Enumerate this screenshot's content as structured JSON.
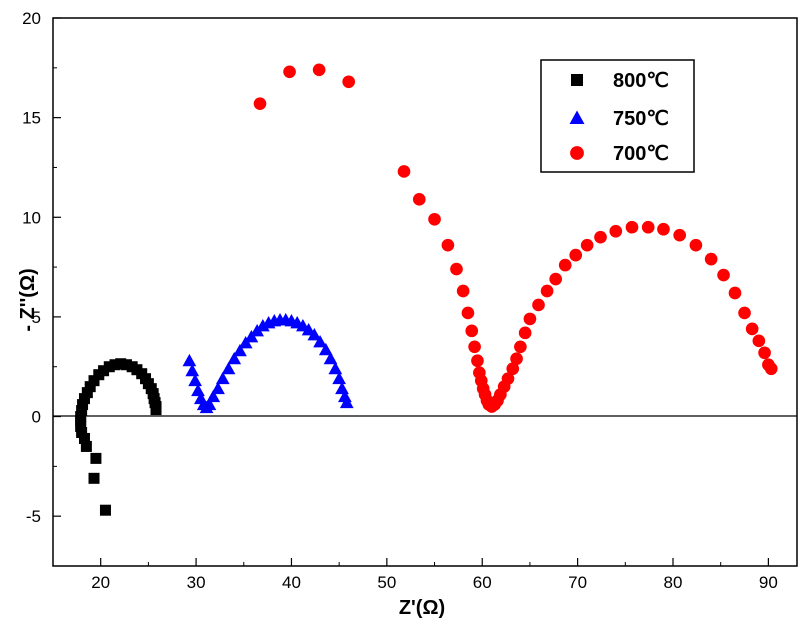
{
  "chart_data": {
    "type": "scatter",
    "xlabel": "Z'(Ω)",
    "ylabel": "- Z''(Ω)",
    "xlim": [
      15,
      93
    ],
    "ylim": [
      -7.5,
      20
    ],
    "xticks": [
      20,
      30,
      40,
      50,
      60,
      70,
      80,
      90
    ],
    "yticks": [
      -5,
      0,
      5,
      10,
      15,
      20
    ],
    "x_tick_labels": [
      "20",
      "30",
      "40",
      "50",
      "60",
      "70",
      "80",
      "90"
    ],
    "y_tick_labels": [
      "-5",
      "0",
      "5",
      "10",
      "15",
      "20"
    ],
    "zero_line": true,
    "grid": false,
    "legend_position": "top-right",
    "series": [
      {
        "name": "800℃",
        "marker": "square",
        "color": "#000000",
        "points": [
          [
            20.5,
            -4.7
          ],
          [
            19.3,
            -3.1
          ],
          [
            19.5,
            -2.1
          ],
          [
            18.5,
            -1.5
          ],
          [
            18.3,
            -1.1
          ],
          [
            18.0,
            -0.8
          ],
          [
            17.9,
            -0.5
          ],
          [
            17.9,
            -0.2
          ],
          [
            17.9,
            0.0
          ],
          [
            18.0,
            0.3
          ],
          [
            18.1,
            0.6
          ],
          [
            18.3,
            0.9
          ],
          [
            18.6,
            1.2
          ],
          [
            18.9,
            1.5
          ],
          [
            19.3,
            1.8
          ],
          [
            19.8,
            2.1
          ],
          [
            20.3,
            2.3
          ],
          [
            20.9,
            2.5
          ],
          [
            21.5,
            2.6
          ],
          [
            22.1,
            2.65
          ],
          [
            22.7,
            2.6
          ],
          [
            23.3,
            2.5
          ],
          [
            23.8,
            2.35
          ],
          [
            24.3,
            2.15
          ],
          [
            24.7,
            1.9
          ],
          [
            25.0,
            1.65
          ],
          [
            25.3,
            1.4
          ],
          [
            25.5,
            1.15
          ],
          [
            25.6,
            0.9
          ],
          [
            25.7,
            0.7
          ],
          [
            25.8,
            0.5
          ],
          [
            25.8,
            0.35
          ]
        ]
      },
      {
        "name": "750℃",
        "marker": "triangle",
        "color": "#0000ff",
        "points": [
          [
            29.3,
            2.8
          ],
          [
            29.6,
            2.3
          ],
          [
            29.9,
            1.8
          ],
          [
            30.2,
            1.3
          ],
          [
            30.5,
            0.9
          ],
          [
            30.8,
            0.6
          ],
          [
            31.1,
            0.45
          ],
          [
            31.4,
            0.6
          ],
          [
            31.8,
            1.0
          ],
          [
            32.3,
            1.4
          ],
          [
            32.8,
            1.9
          ],
          [
            33.4,
            2.4
          ],
          [
            34.0,
            2.9
          ],
          [
            34.6,
            3.3
          ],
          [
            35.2,
            3.7
          ],
          [
            35.8,
            4.0
          ],
          [
            36.4,
            4.3
          ],
          [
            37.0,
            4.55
          ],
          [
            37.6,
            4.7
          ],
          [
            38.2,
            4.8
          ],
          [
            38.8,
            4.85
          ],
          [
            39.4,
            4.85
          ],
          [
            40.0,
            4.8
          ],
          [
            40.6,
            4.7
          ],
          [
            41.2,
            4.55
          ],
          [
            41.8,
            4.35
          ],
          [
            42.4,
            4.1
          ],
          [
            43.0,
            3.75
          ],
          [
            43.6,
            3.35
          ],
          [
            44.1,
            2.9
          ],
          [
            44.6,
            2.4
          ],
          [
            45.0,
            1.9
          ],
          [
            45.3,
            1.4
          ],
          [
            45.6,
            1.0
          ],
          [
            45.8,
            0.7
          ]
        ]
      },
      {
        "name": "700℃",
        "marker": "circle",
        "color": "#ff0000",
        "points": [
          [
            36.7,
            15.7
          ],
          [
            39.8,
            17.3
          ],
          [
            42.9,
            17.4
          ],
          [
            46.0,
            16.8
          ],
          [
            51.8,
            12.3
          ],
          [
            53.4,
            10.9
          ],
          [
            55.0,
            9.9
          ],
          [
            56.4,
            8.6
          ],
          [
            57.3,
            7.4
          ],
          [
            58.0,
            6.3
          ],
          [
            58.5,
            5.2
          ],
          [
            58.9,
            4.3
          ],
          [
            59.2,
            3.5
          ],
          [
            59.5,
            2.8
          ],
          [
            59.7,
            2.2
          ],
          [
            59.9,
            1.8
          ],
          [
            60.1,
            1.4
          ],
          [
            60.3,
            1.1
          ],
          [
            60.5,
            0.8
          ],
          [
            60.7,
            0.6
          ],
          [
            61.0,
            0.5
          ],
          [
            61.3,
            0.6
          ],
          [
            61.6,
            0.8
          ],
          [
            61.9,
            1.1
          ],
          [
            62.3,
            1.5
          ],
          [
            62.7,
            1.9
          ],
          [
            63.2,
            2.4
          ],
          [
            63.6,
            2.9
          ],
          [
            64.0,
            3.5
          ],
          [
            64.5,
            4.2
          ],
          [
            65.0,
            4.9
          ],
          [
            65.9,
            5.6
          ],
          [
            66.8,
            6.3
          ],
          [
            67.7,
            6.9
          ],
          [
            68.7,
            7.6
          ],
          [
            69.8,
            8.1
          ],
          [
            71.0,
            8.6
          ],
          [
            72.4,
            9.0
          ],
          [
            74.0,
            9.3
          ],
          [
            75.7,
            9.5
          ],
          [
            77.4,
            9.5
          ],
          [
            79.0,
            9.4
          ],
          [
            80.7,
            9.1
          ],
          [
            82.4,
            8.6
          ],
          [
            84.0,
            7.9
          ],
          [
            85.3,
            7.1
          ],
          [
            86.5,
            6.2
          ],
          [
            87.5,
            5.2
          ],
          [
            88.3,
            4.4
          ],
          [
            89.0,
            3.8
          ],
          [
            89.6,
            3.2
          ],
          [
            90.0,
            2.6
          ],
          [
            90.3,
            2.4
          ]
        ]
      }
    ]
  }
}
